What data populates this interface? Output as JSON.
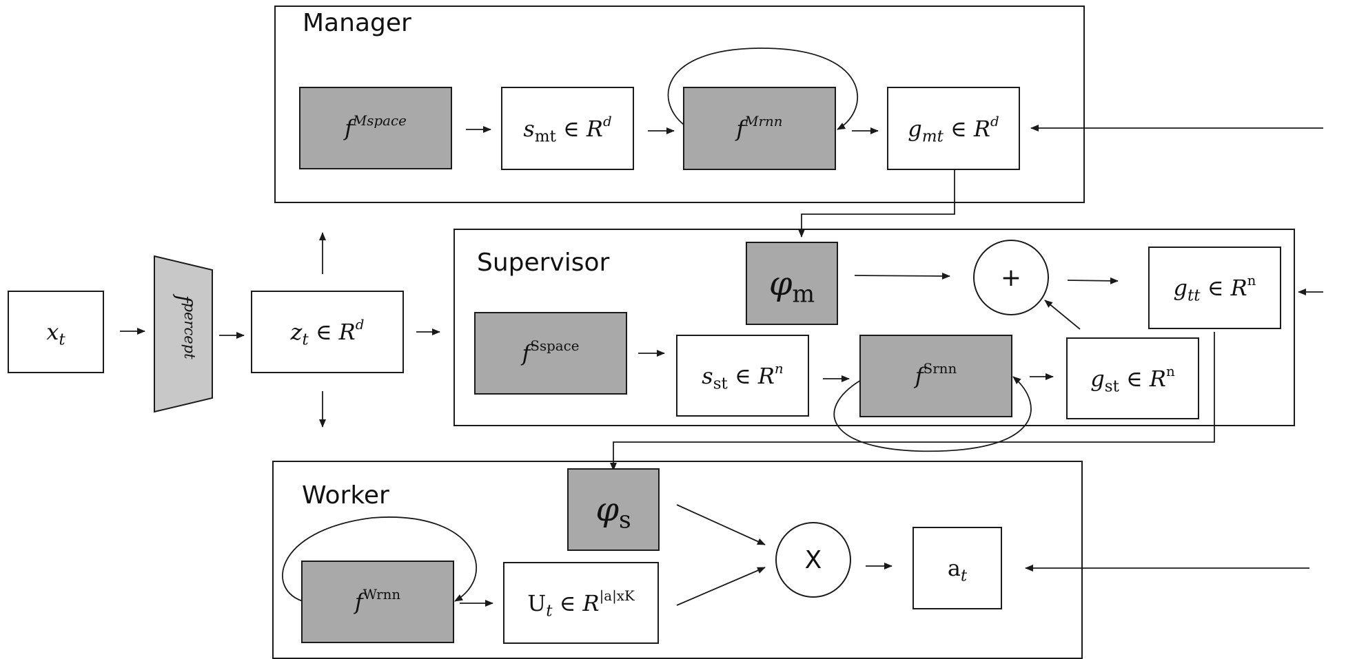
{
  "frames": {
    "manager": "Manager",
    "supervisor": "Supervisor",
    "worker": "Worker"
  },
  "nodes": {
    "x_t": {
      "var": "x",
      "sub": "t"
    },
    "f_percept": {
      "var": "f",
      "sup": "percept"
    },
    "z_t": {
      "var": "z",
      "sub": "t",
      "in": "∈",
      "space": "R",
      "dim": "d"
    },
    "f_mspace": {
      "var": "f",
      "sup": "Mspace"
    },
    "s_mt": {
      "var": "s",
      "sub": "mt",
      "in": "∈",
      "space": "R",
      "dim": "d"
    },
    "f_mrnn": {
      "var": "f",
      "sup": "Mrnn"
    },
    "g_mt": {
      "var": "g",
      "sub": "mt",
      "in": "∈",
      "space": "R",
      "dim": "d"
    },
    "phi_m": {
      "var": "φ",
      "sub": "m"
    },
    "plus": {
      "symbol": "+"
    },
    "g_tt": {
      "var": "g",
      "sub": "tt",
      "in": "∈",
      "space": "R",
      "dim": "n"
    },
    "f_sspace": {
      "var": "f",
      "sup": "Sspace"
    },
    "s_st": {
      "var": "s",
      "sub": "st",
      "in": "∈",
      "space": "R",
      "dim": "n"
    },
    "f_srnn": {
      "var": "f",
      "sup": "Srnn"
    },
    "g_st": {
      "var": "g",
      "sub": "st",
      "in": "∈",
      "space": "R",
      "dim": "n"
    },
    "phi_s": {
      "var": "φ",
      "sub": "s"
    },
    "times": {
      "symbol": "X"
    },
    "a_t": {
      "base": "a",
      "sub": "t"
    },
    "f_wrnn": {
      "var": "f",
      "sup": "Wrnn"
    },
    "u_t": {
      "base": "U",
      "sub": "t",
      "in": "∈",
      "space": "R",
      "dim": "|a|xK"
    }
  },
  "colors": {
    "function_block_fill": "#a9a9a9",
    "percept_fill": "#c8c8c8",
    "line": "#1a1a1a",
    "background": "#ffffff"
  }
}
